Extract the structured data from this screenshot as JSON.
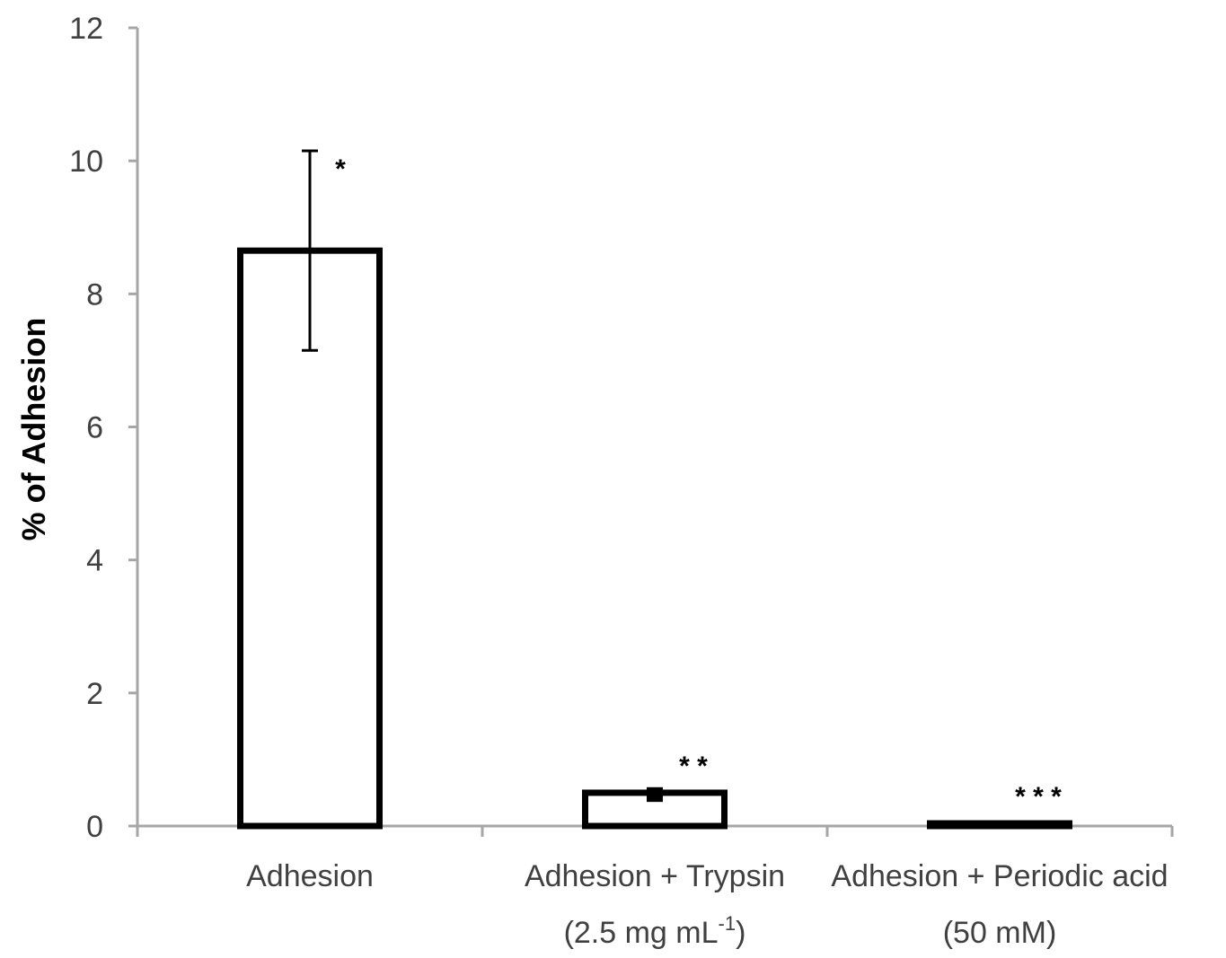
{
  "chart_data": {
    "type": "bar",
    "title": "",
    "xlabel": "",
    "ylabel": "% of Adhesion",
    "ylim": [
      0,
      12
    ],
    "yticks": [
      "0",
      "2",
      "4",
      "6",
      "8",
      "10",
      "12"
    ],
    "categories": [
      {
        "line1": "Adhesion",
        "line2": "",
        "sup": "",
        "line2_end": ""
      },
      {
        "line1": "Adhesion + Trypsin",
        "line2": "(2.5 mg mL",
        "sup": "-1",
        "line2_end": ")"
      },
      {
        "line1": "Adhesion + Periodic acid",
        "line2": "(50 mM)",
        "sup": "",
        "line2_end": ""
      }
    ],
    "values": [
      8.65,
      0.5,
      0.04
    ],
    "errors": [
      1.5,
      0.07,
      0.0
    ],
    "significance": [
      "*",
      "* *",
      "* * *"
    ],
    "grid": false,
    "legend": "none",
    "bar_fill": "#ffffff",
    "bar_stroke": "#000000",
    "axis_color": "#a6a6a6"
  }
}
